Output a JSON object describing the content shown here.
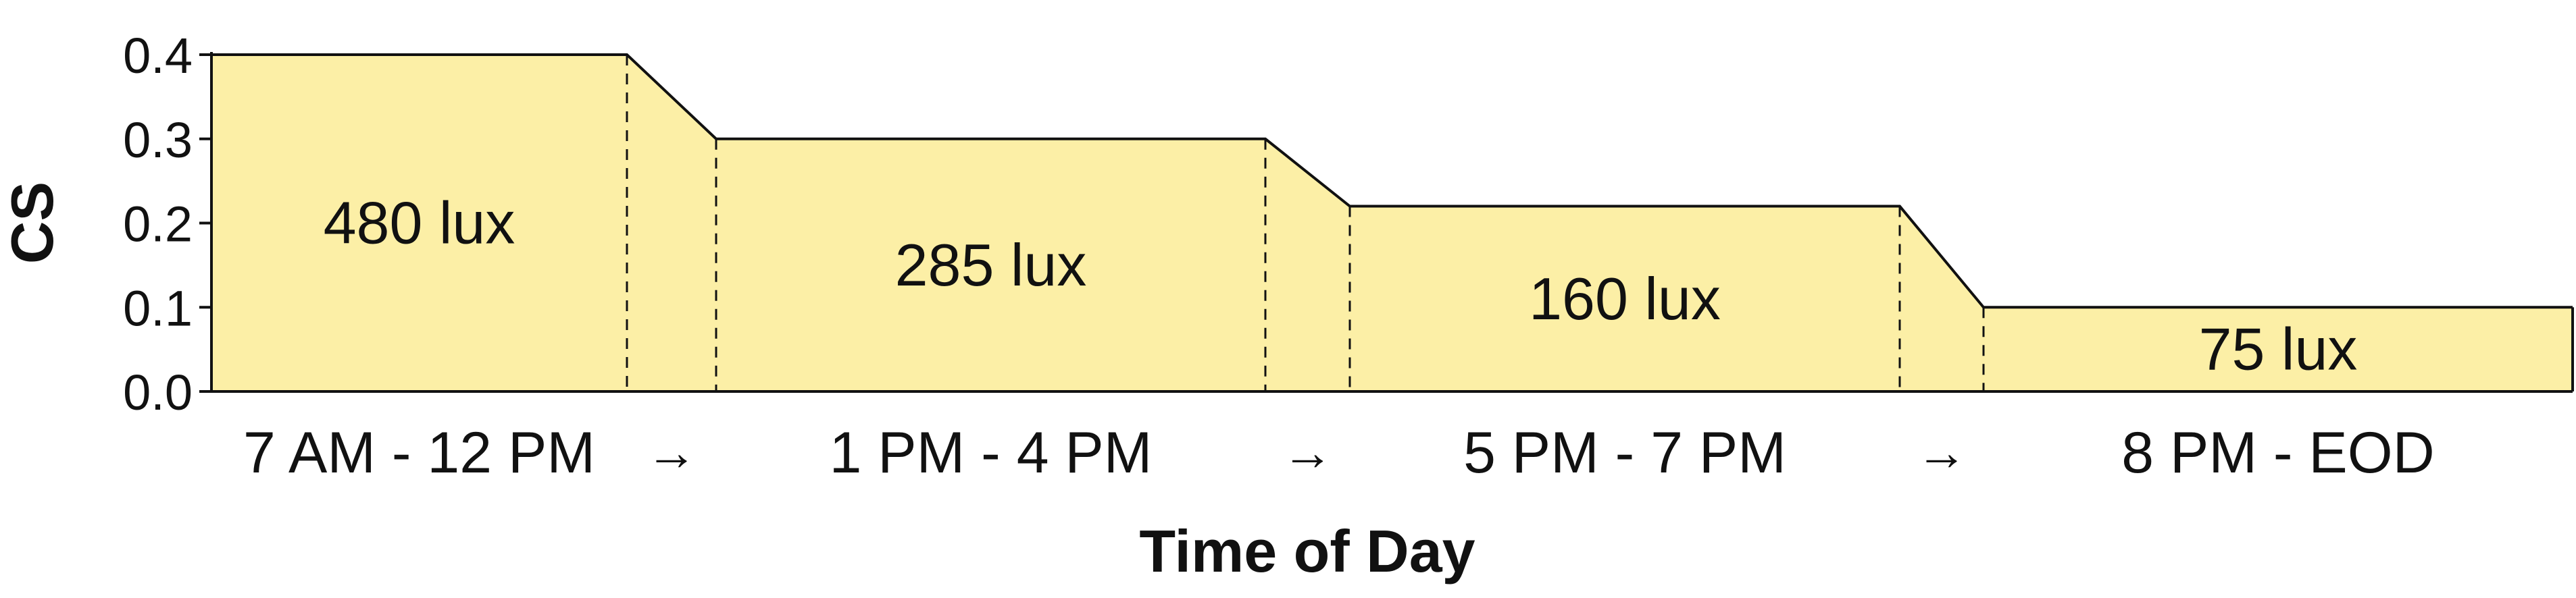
{
  "chart_data": {
    "type": "area",
    "title": "",
    "xlabel": "Time of Day",
    "ylabel": "CS",
    "ylim": [
      0,
      0.4
    ],
    "yticks": [
      "0.0",
      "0.1",
      "0.2",
      "0.3",
      "0.4"
    ],
    "grid": false,
    "fill_color": "#fcefa6",
    "line_color": "#111111",
    "segments": [
      {
        "label": "7 AM - 12 PM",
        "cs": 0.4,
        "lux_label": "480 lux"
      },
      {
        "label": "1 PM - 4 PM",
        "cs": 0.3,
        "lux_label": "285 lux"
      },
      {
        "label": "5 PM - 7 PM",
        "cs": 0.22,
        "lux_label": "160 lux"
      },
      {
        "label": "8 PM - EOD",
        "cs": 0.1,
        "lux_label": "75 lux"
      }
    ],
    "arrow_glyph": "→"
  }
}
